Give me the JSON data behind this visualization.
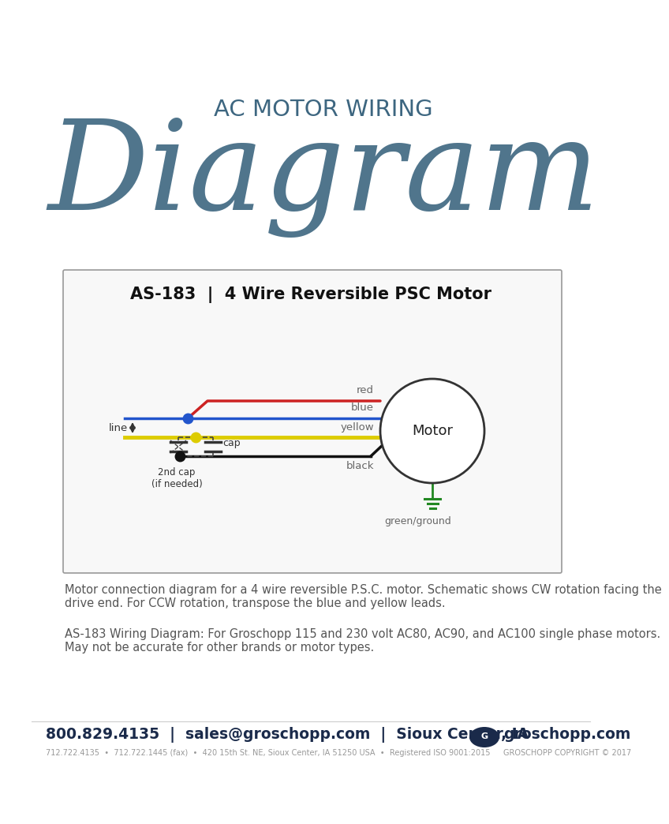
{
  "bg_color": "#ffffff",
  "title_small": "AC MOTOR WIRING",
  "title_large": "Diagram",
  "title_color": "#3d6680",
  "diagram_title": "AS-183  |  4 Wire Reversible PSC Motor",
  "wire_colors": {
    "red": "#cc2222",
    "blue": "#2255cc",
    "yellow": "#ddcc00",
    "black": "#111111",
    "green": "#228822"
  },
  "desc1": "Motor connection diagram for a 4 wire reversible P.S.C. motor. Schematic shows CW rotation facing the\ndrive end. For CCW rotation, transpose the blue and yellow leads.",
  "desc2": "AS-183 Wiring Diagram: For Groschopp 115 and 230 volt AC80, AC90, and AC100 single phase motors.\nMay not be accurate for other brands or motor types.",
  "footer_color": "#1a2a4a",
  "text_color": "#555555"
}
